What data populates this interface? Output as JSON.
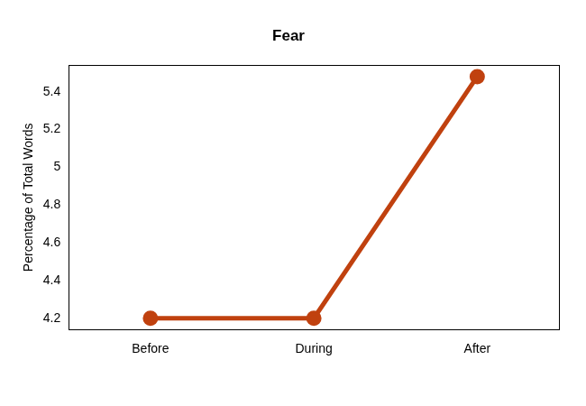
{
  "chart_data": {
    "type": "line",
    "title": "Fear",
    "y_label": "Percentage of Total Words",
    "categories": [
      "Before",
      "During",
      "After"
    ],
    "values": [
      4.2,
      4.2,
      5.48
    ],
    "color": "#c0410f",
    "marker": "circle",
    "ylim": [
      4.14,
      5.54
    ],
    "yticks": [
      4.2,
      4.4,
      4.6,
      4.8,
      5.0,
      5.2,
      5.4
    ],
    "grid": false
  }
}
